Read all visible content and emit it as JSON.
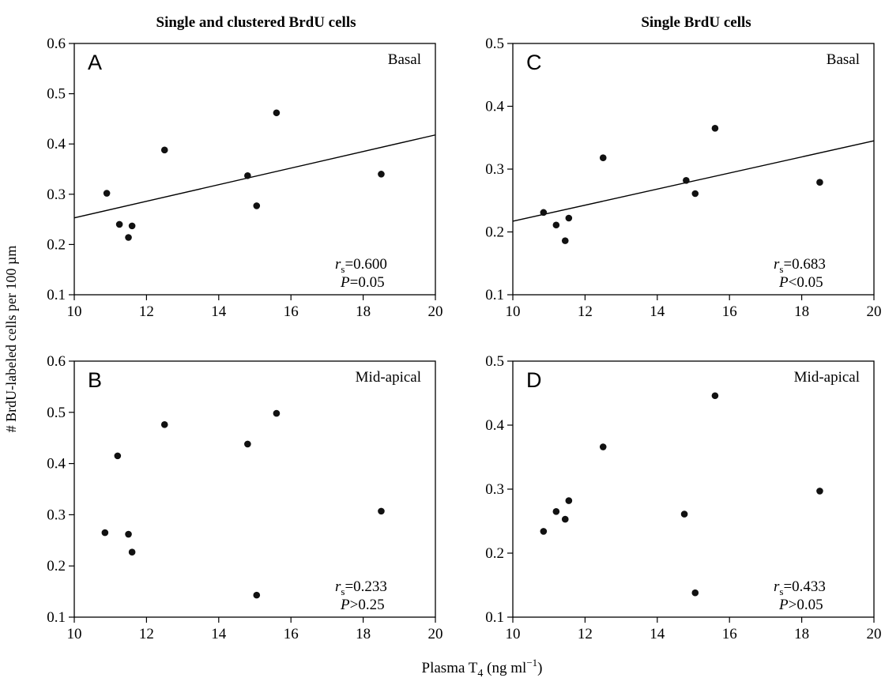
{
  "figure": {
    "col_titles": [
      "Single and clustered BrdU cells",
      "Single BrdU cells"
    ],
    "ylabel": "# BrdU-labeled cells per 100 µm",
    "xlabel_prefix": "Plasma T",
    "xlabel_sub": "4",
    "xlabel_suffix": " (ng ml",
    "xlabel_sup": "−1",
    "xlabel_close": ")"
  },
  "chart_data": [
    {
      "type": "scatter",
      "panel": "A",
      "region": "Basal",
      "xlim": [
        10,
        20
      ],
      "ylim": [
        0.1,
        0.6
      ],
      "xticks": [
        10,
        12,
        14,
        16,
        18,
        20
      ],
      "yticks": [
        0.1,
        0.2,
        0.3,
        0.4,
        0.5,
        0.6
      ],
      "xticklabels": [
        "10",
        "12",
        "14",
        "16",
        "18",
        "20"
      ],
      "yticklabels": [
        "0.1",
        "0.2",
        "0.3",
        "0.4",
        "0.5",
        "0.6"
      ],
      "points": [
        [
          10.9,
          0.302
        ],
        [
          11.25,
          0.24
        ],
        [
          11.5,
          0.214
        ],
        [
          11.6,
          0.237
        ],
        [
          12.5,
          0.388
        ],
        [
          14.8,
          0.337
        ],
        [
          15.05,
          0.277
        ],
        [
          15.6,
          0.462
        ],
        [
          18.5,
          0.34
        ]
      ],
      "fit_line": [
        [
          10,
          0.253
        ],
        [
          20,
          0.418
        ]
      ],
      "stats": {
        "rs_label": "r",
        "rs_sub": "s",
        "rs_value": "=0.600",
        "p_label": "P",
        "p_value": "=0.05"
      }
    },
    {
      "type": "scatter",
      "panel": "B",
      "region": "Mid-apical",
      "xlim": [
        10,
        20
      ],
      "ylim": [
        0.1,
        0.6
      ],
      "xticks": [
        10,
        12,
        14,
        16,
        18,
        20
      ],
      "yticks": [
        0.1,
        0.2,
        0.3,
        0.4,
        0.5,
        0.6
      ],
      "xticklabels": [
        "10",
        "12",
        "14",
        "16",
        "18",
        "20"
      ],
      "yticklabels": [
        "0.1",
        "0.2",
        "0.3",
        "0.4",
        "0.5",
        "0.6"
      ],
      "points": [
        [
          10.85,
          0.265
        ],
        [
          11.2,
          0.415
        ],
        [
          11.5,
          0.262
        ],
        [
          11.6,
          0.227
        ],
        [
          12.5,
          0.476
        ],
        [
          14.8,
          0.438
        ],
        [
          15.05,
          0.143
        ],
        [
          15.6,
          0.498
        ],
        [
          18.5,
          0.307
        ]
      ],
      "fit_line": null,
      "stats": {
        "rs_label": "r",
        "rs_sub": "s",
        "rs_value": "=0.233",
        "p_label": "P",
        "p_value": ">0.25"
      }
    },
    {
      "type": "scatter",
      "panel": "C",
      "region": "Basal",
      "xlim": [
        10,
        20
      ],
      "ylim": [
        0.1,
        0.5
      ],
      "xticks": [
        10,
        12,
        14,
        16,
        18,
        20
      ],
      "yticks": [
        0.1,
        0.2,
        0.3,
        0.4,
        0.5
      ],
      "xticklabels": [
        "10",
        "12",
        "14",
        "16",
        "18",
        "20"
      ],
      "yticklabels": [
        "0.1",
        "0.2",
        "0.3",
        "0.4",
        "0.5"
      ],
      "points": [
        [
          10.85,
          0.231
        ],
        [
          11.2,
          0.211
        ],
        [
          11.45,
          0.186
        ],
        [
          11.55,
          0.222
        ],
        [
          12.5,
          0.318
        ],
        [
          14.8,
          0.282
        ],
        [
          15.05,
          0.261
        ],
        [
          15.6,
          0.365
        ],
        [
          18.5,
          0.279
        ]
      ],
      "fit_line": [
        [
          10,
          0.217
        ],
        [
          20,
          0.345
        ]
      ],
      "stats": {
        "rs_label": "r",
        "rs_sub": "s",
        "rs_value": "=0.683",
        "p_label": "P",
        "p_value": "<0.05"
      }
    },
    {
      "type": "scatter",
      "panel": "D",
      "region": "Mid-apical",
      "xlim": [
        10,
        20
      ],
      "ylim": [
        0.1,
        0.5
      ],
      "xticks": [
        10,
        12,
        14,
        16,
        18,
        20
      ],
      "yticks": [
        0.1,
        0.2,
        0.3,
        0.4,
        0.5
      ],
      "xticklabels": [
        "10",
        "12",
        "14",
        "16",
        "18",
        "20"
      ],
      "yticklabels": [
        "0.1",
        "0.2",
        "0.3",
        "0.4",
        "0.5"
      ],
      "points": [
        [
          10.85,
          0.234
        ],
        [
          11.2,
          0.265
        ],
        [
          11.45,
          0.253
        ],
        [
          11.55,
          0.282
        ],
        [
          12.5,
          0.366
        ],
        [
          14.75,
          0.261
        ],
        [
          15.05,
          0.138
        ],
        [
          15.6,
          0.446
        ],
        [
          18.5,
          0.297
        ]
      ],
      "fit_line": null,
      "stats": {
        "rs_label": "r",
        "rs_sub": "s",
        "rs_value": "=0.433",
        "p_label": "P",
        "p_value": ">0.05"
      }
    }
  ]
}
